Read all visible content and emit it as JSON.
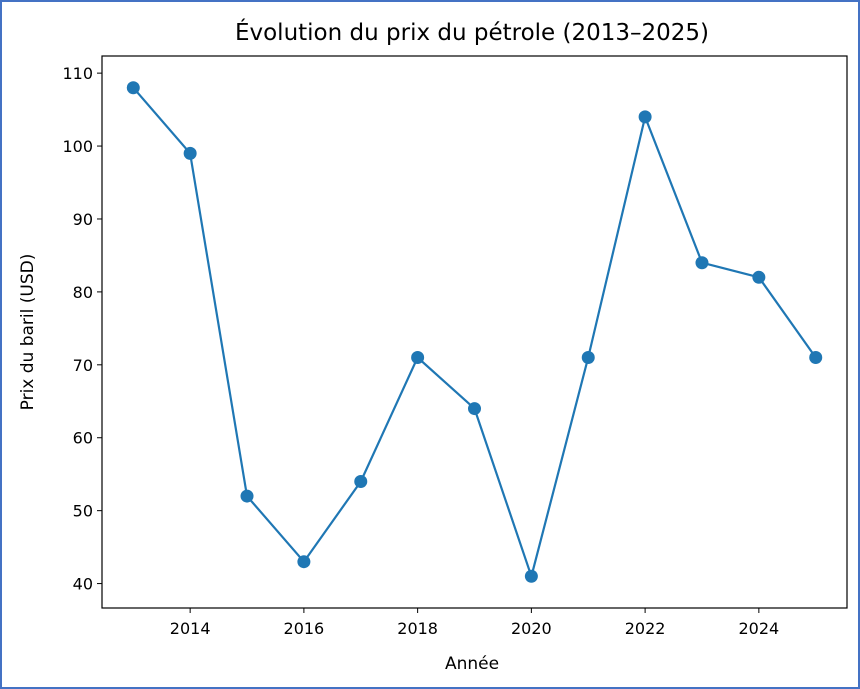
{
  "chart_data": {
    "type": "line",
    "title": "Évolution du prix du pétrole (2013–2025)",
    "xlabel": "Année",
    "ylabel": "Prix du baril (USD)",
    "x": [
      2013,
      2014,
      2015,
      2016,
      2017,
      2018,
      2019,
      2020,
      2021,
      2022,
      2023,
      2024,
      2025
    ],
    "series": [
      {
        "values": [
          108,
          99,
          52,
          43,
          54,
          71,
          64,
          41,
          71,
          104,
          84,
          82,
          71
        ]
      }
    ],
    "xlim": [
      2012.45,
      2025.55
    ],
    "ylim": [
      36.65,
      112.35
    ],
    "xticks": [
      2014,
      2016,
      2018,
      2020,
      2022,
      2024
    ],
    "yticks": [
      40,
      50,
      60,
      70,
      80,
      90,
      100,
      110
    ],
    "grid": false,
    "legend": "none",
    "colors": {
      "line": "#1f77b4",
      "border": "#4472c4"
    }
  }
}
